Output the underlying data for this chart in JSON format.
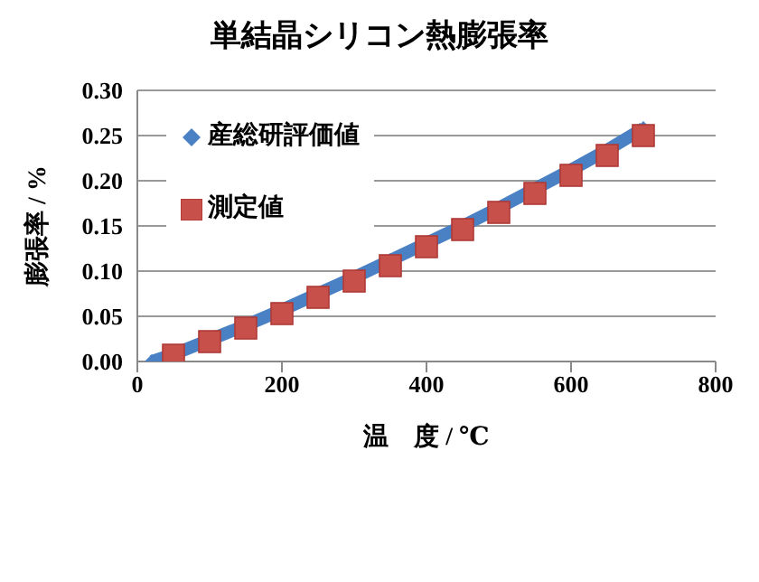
{
  "chart_data": {
    "type": "scatter",
    "title": "単結晶シリコン熱膨張率",
    "xlabel": "温　度 / ℃",
    "ylabel": "膨張率 / %",
    "xlim": [
      0,
      800
    ],
    "xticks": [
      0,
      200,
      400,
      600,
      800
    ],
    "ylim": [
      0,
      0.3
    ],
    "yticks": [
      {
        "value": 0,
        "label": "0.00"
      },
      {
        "value": 0.05,
        "label": "0.05"
      },
      {
        "value": 0.1,
        "label": "0.10"
      },
      {
        "value": 0.15,
        "label": "0.15"
      },
      {
        "value": 0.2,
        "label": "0.20"
      },
      {
        "value": 0.25,
        "label": "0.25"
      },
      {
        "value": 0.3,
        "label": "0.30"
      }
    ],
    "grid": "y",
    "legend": "top left",
    "series": [
      {
        "name": "産総研評価値",
        "type": "line",
        "marker": "diamond",
        "color": "#4a80c4",
        "x": [
          20,
          50,
          100,
          150,
          200,
          250,
          300,
          350,
          400,
          450,
          500,
          550,
          600,
          650,
          700
        ],
        "values": [
          0,
          0.008,
          0.024,
          0.04,
          0.057,
          0.075,
          0.093,
          0.112,
          0.131,
          0.15,
          0.17,
          0.191,
          0.212,
          0.234,
          0.258
        ]
      },
      {
        "name": "測定値",
        "marker": "square",
        "color": "#c8504b",
        "x": [
          50,
          100,
          150,
          200,
          250,
          300,
          350,
          400,
          450,
          500,
          550,
          600,
          650,
          700
        ],
        "values": [
          0.007,
          0.022,
          0.037,
          0.053,
          0.071,
          0.089,
          0.106,
          0.127,
          0.146,
          0.165,
          0.186,
          0.206,
          0.228,
          0.25
        ]
      }
    ]
  }
}
